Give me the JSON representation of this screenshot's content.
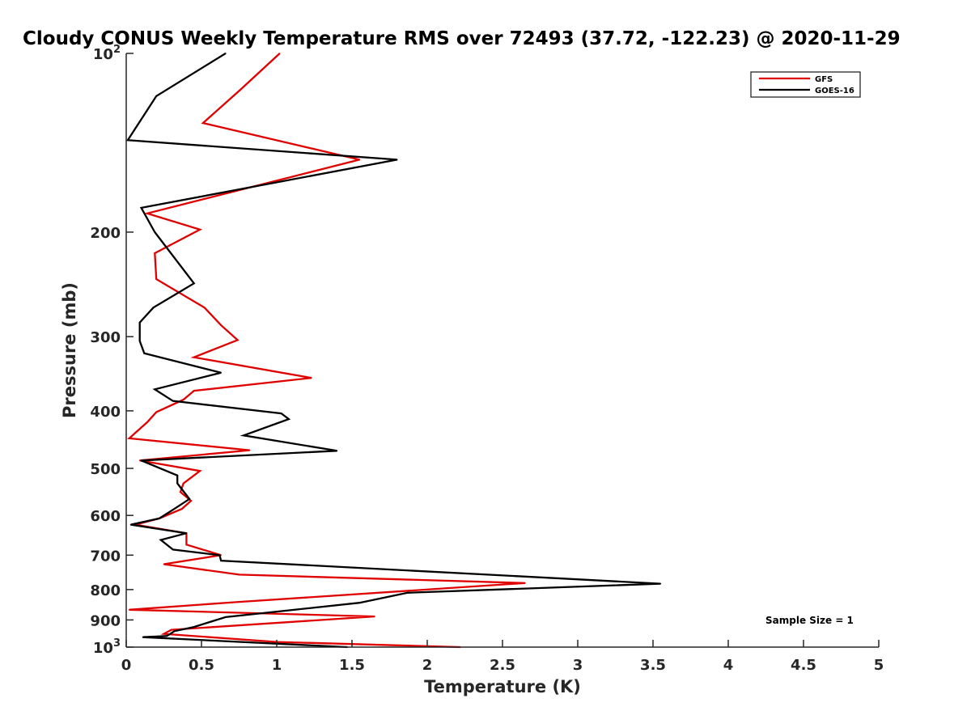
{
  "chart_data": {
    "type": "line",
    "title": "Cloudy CONUS Weekly Temperature RMS over 72493 (37.72, -122.23) @ 2020-11-29",
    "xlabel": "Temperature (K)",
    "ylabel": "Pressure (mb)",
    "xlim": [
      0,
      5
    ],
    "ylim": [
      100,
      1000
    ],
    "y_scale": "log",
    "y_reversed": true,
    "x_ticks": [
      "0",
      "0.5",
      "1",
      "1.5",
      "2",
      "2.5",
      "3",
      "3.5",
      "4",
      "4.5",
      "5"
    ],
    "x_tick_values": [
      0,
      0.5,
      1,
      1.5,
      2,
      2.5,
      3,
      3.5,
      4,
      4.5,
      5
    ],
    "y_ticks": [
      {
        "value": 100,
        "base": "10",
        "exp": "2"
      },
      {
        "value": 200,
        "label": "200"
      },
      {
        "value": 300,
        "label": "300"
      },
      {
        "value": 400,
        "label": "400"
      },
      {
        "value": 500,
        "label": "500"
      },
      {
        "value": 600,
        "label": "600"
      },
      {
        "value": 700,
        "label": "700"
      },
      {
        "value": 800,
        "label": "800"
      },
      {
        "value": 900,
        "label": "900"
      },
      {
        "value": 1000,
        "base": "10",
        "exp": "3"
      }
    ],
    "grid": false,
    "legend_position": "top-right",
    "annotation": "Sample Size = 1",
    "series": [
      {
        "name": "GFS",
        "color": "#e00000",
        "points": [
          [
            1.02,
            100
          ],
          [
            0.76,
            115
          ],
          [
            0.51,
            131
          ],
          [
            1.55,
            151
          ],
          [
            0.14,
            186
          ],
          [
            0.49,
            198
          ],
          [
            0.19,
            217
          ],
          [
            0.2,
            240
          ],
          [
            0.52,
            268
          ],
          [
            0.63,
            287
          ],
          [
            0.74,
            304
          ],
          [
            0.45,
            325
          ],
          [
            1.23,
            352
          ],
          [
            0.45,
            370
          ],
          [
            0.38,
            383
          ],
          [
            0.2,
            402
          ],
          [
            0.14,
            418
          ],
          [
            0.02,
            445
          ],
          [
            0.82,
            466
          ],
          [
            0.09,
            485
          ],
          [
            0.49,
            505
          ],
          [
            0.38,
            530
          ],
          [
            0.36,
            548
          ],
          [
            0.43,
            567
          ],
          [
            0.37,
            585
          ],
          [
            0.22,
            607
          ],
          [
            0.06,
            622
          ],
          [
            0.4,
            643
          ],
          [
            0.4,
            672
          ],
          [
            0.63,
            700
          ],
          [
            0.25,
            725
          ],
          [
            0.75,
            755
          ],
          [
            2.65,
            780
          ],
          [
            0.73,
            840
          ],
          [
            0.02,
            865
          ],
          [
            1.65,
            888
          ],
          [
            0.3,
            935
          ],
          [
            0.25,
            950
          ],
          [
            1.0,
            980
          ],
          [
            2.22,
            1000
          ]
        ]
      },
      {
        "name": "GOES-16",
        "color": "#000000",
        "points": [
          [
            0.66,
            100
          ],
          [
            0.2,
            118
          ],
          [
            0.01,
            140
          ],
          [
            1.8,
            151
          ],
          [
            0.1,
            182
          ],
          [
            0.19,
            200
          ],
          [
            0.45,
            244
          ],
          [
            0.18,
            268
          ],
          [
            0.09,
            284
          ],
          [
            0.09,
            305
          ],
          [
            0.12,
            320
          ],
          [
            0.63,
            345
          ],
          [
            0.19,
            368
          ],
          [
            0.31,
            385
          ],
          [
            1.03,
            404
          ],
          [
            1.08,
            413
          ],
          [
            0.78,
            440
          ],
          [
            1.4,
            467
          ],
          [
            0.1,
            485
          ],
          [
            0.34,
            514
          ],
          [
            0.34,
            530
          ],
          [
            0.42,
            563
          ],
          [
            0.32,
            585
          ],
          [
            0.22,
            607
          ],
          [
            0.03,
            622
          ],
          [
            0.4,
            643
          ],
          [
            0.23,
            660
          ],
          [
            0.31,
            685
          ],
          [
            0.62,
            700
          ],
          [
            0.63,
            715
          ],
          [
            3.55,
            782
          ],
          [
            1.87,
            810
          ],
          [
            1.55,
            842
          ],
          [
            0.66,
            890
          ],
          [
            0.45,
            925
          ],
          [
            0.32,
            940
          ],
          [
            0.27,
            958
          ],
          [
            0.11,
            962
          ],
          [
            1.47,
            1000
          ]
        ]
      }
    ]
  }
}
